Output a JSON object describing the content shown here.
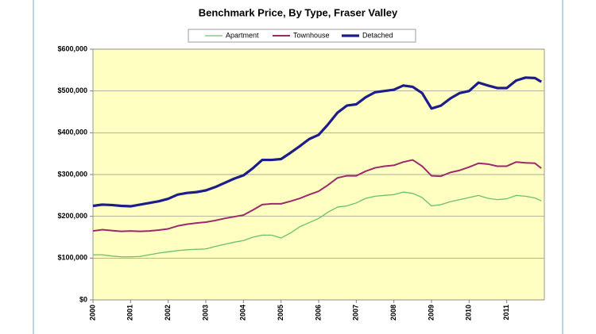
{
  "chart_data": {
    "type": "line",
    "title": "Benchmark Price, By Type, Fraser Valley",
    "x": [
      2000,
      2000.25,
      2000.5,
      2000.75,
      2001,
      2001.25,
      2001.5,
      2001.75,
      2002,
      2002.25,
      2002.5,
      2002.75,
      2003,
      2003.25,
      2003.5,
      2003.75,
      2004,
      2004.25,
      2004.5,
      2004.75,
      2005,
      2005.25,
      2005.5,
      2005.75,
      2006,
      2006.25,
      2006.5,
      2006.75,
      2007,
      2007.25,
      2007.5,
      2007.75,
      2008,
      2008.25,
      2008.5,
      2008.75,
      2009,
      2009.25,
      2009.5,
      2009.75,
      2010,
      2010.25,
      2010.5,
      2010.75,
      2011,
      2011.25,
      2011.5,
      2011.75,
      2011.92
    ],
    "series": [
      {
        "name": "Apartment",
        "color": "#6cbf6c",
        "width": 1.3,
        "values": [
          108000,
          108000,
          105000,
          103000,
          103000,
          104000,
          108000,
          112000,
          115000,
          118000,
          120000,
          121000,
          122000,
          128000,
          133000,
          138000,
          142000,
          150000,
          155000,
          155000,
          148000,
          160000,
          175000,
          185000,
          195000,
          210000,
          222000,
          225000,
          232000,
          243000,
          248000,
          250000,
          252000,
          258000,
          255000,
          245000,
          225000,
          228000,
          235000,
          240000,
          245000,
          250000,
          243000,
          240000,
          242000,
          250000,
          248000,
          244000,
          237000
        ]
      },
      {
        "name": "Townhouse",
        "color": "#9b2a6b",
        "width": 2,
        "values": [
          165000,
          168000,
          166000,
          164000,
          165000,
          164000,
          165000,
          167000,
          170000,
          177000,
          181000,
          184000,
          186000,
          190000,
          195000,
          199000,
          203000,
          215000,
          228000,
          230000,
          230000,
          236000,
          243000,
          252000,
          260000,
          275000,
          292000,
          297000,
          297000,
          308000,
          316000,
          320000,
          322000,
          330000,
          335000,
          320000,
          297000,
          296000,
          305000,
          310000,
          318000,
          327000,
          325000,
          320000,
          320000,
          330000,
          328000,
          327000,
          315000
        ]
      },
      {
        "name": "Detached",
        "color": "#1c1c8a",
        "width": 3.2,
        "values": [
          225000,
          228000,
          227000,
          225000,
          224000,
          228000,
          232000,
          236000,
          242000,
          252000,
          256000,
          258000,
          262000,
          270000,
          280000,
          290000,
          298000,
          315000,
          335000,
          335000,
          337000,
          352000,
          368000,
          385000,
          395000,
          420000,
          448000,
          465000,
          468000,
          485000,
          497000,
          500000,
          503000,
          513000,
          510000,
          495000,
          458000,
          465000,
          482000,
          495000,
          500000,
          520000,
          513000,
          507000,
          507000,
          525000,
          532000,
          531000,
          522000
        ]
      }
    ],
    "xlim": [
      2000,
      2012
    ],
    "xticks": [
      2000,
      2001,
      2002,
      2003,
      2004,
      2005,
      2006,
      2007,
      2008,
      2009,
      2010,
      2011
    ],
    "ylim": [
      0,
      600000
    ],
    "yticks": [
      {
        "value": 0,
        "label": "$0"
      },
      {
        "value": 100000,
        "label": "$100,000"
      },
      {
        "value": 200000,
        "label": "$200,000"
      },
      {
        "value": 300000,
        "label": "$300,000"
      },
      {
        "value": 400000,
        "label": "$400,000"
      },
      {
        "value": 500000,
        "label": "$500,000"
      },
      {
        "value": 600000,
        "label": "$600,000"
      }
    ],
    "grid": true,
    "legend": "top",
    "plot_background": "#ffffc2"
  }
}
